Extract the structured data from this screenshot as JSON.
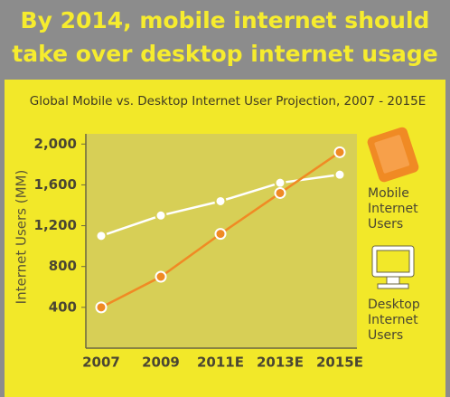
{
  "chart_data": {
    "type": "line",
    "title": "By 2014, mobile internet should take over desktop internet usage",
    "subtitle": "Global Mobile vs. Desktop Internet User Projection, 2007 - 2015E",
    "y_label": "Internet Users (MM)",
    "categories": [
      "2007",
      "2009",
      "2011E",
      "2013E",
      "2015E"
    ],
    "series": [
      {
        "name": "Mobile Internet Users",
        "color": "#f08a24",
        "values": [
          400,
          700,
          1120,
          1520,
          1920
        ]
      },
      {
        "name": "Desktop Internet Users",
        "color": "#ffffff",
        "values": [
          1100,
          1300,
          1440,
          1620,
          1700
        ]
      }
    ],
    "ylim": [
      0,
      2100
    ],
    "yticks": [
      {
        "value": 400,
        "label": "400"
      },
      {
        "value": 800,
        "label": "800"
      },
      {
        "value": 1200,
        "label": "1,200"
      },
      {
        "value": 1600,
        "label": "1,600"
      },
      {
        "value": 2000,
        "label": "2,000"
      }
    ],
    "grid": false
  }
}
